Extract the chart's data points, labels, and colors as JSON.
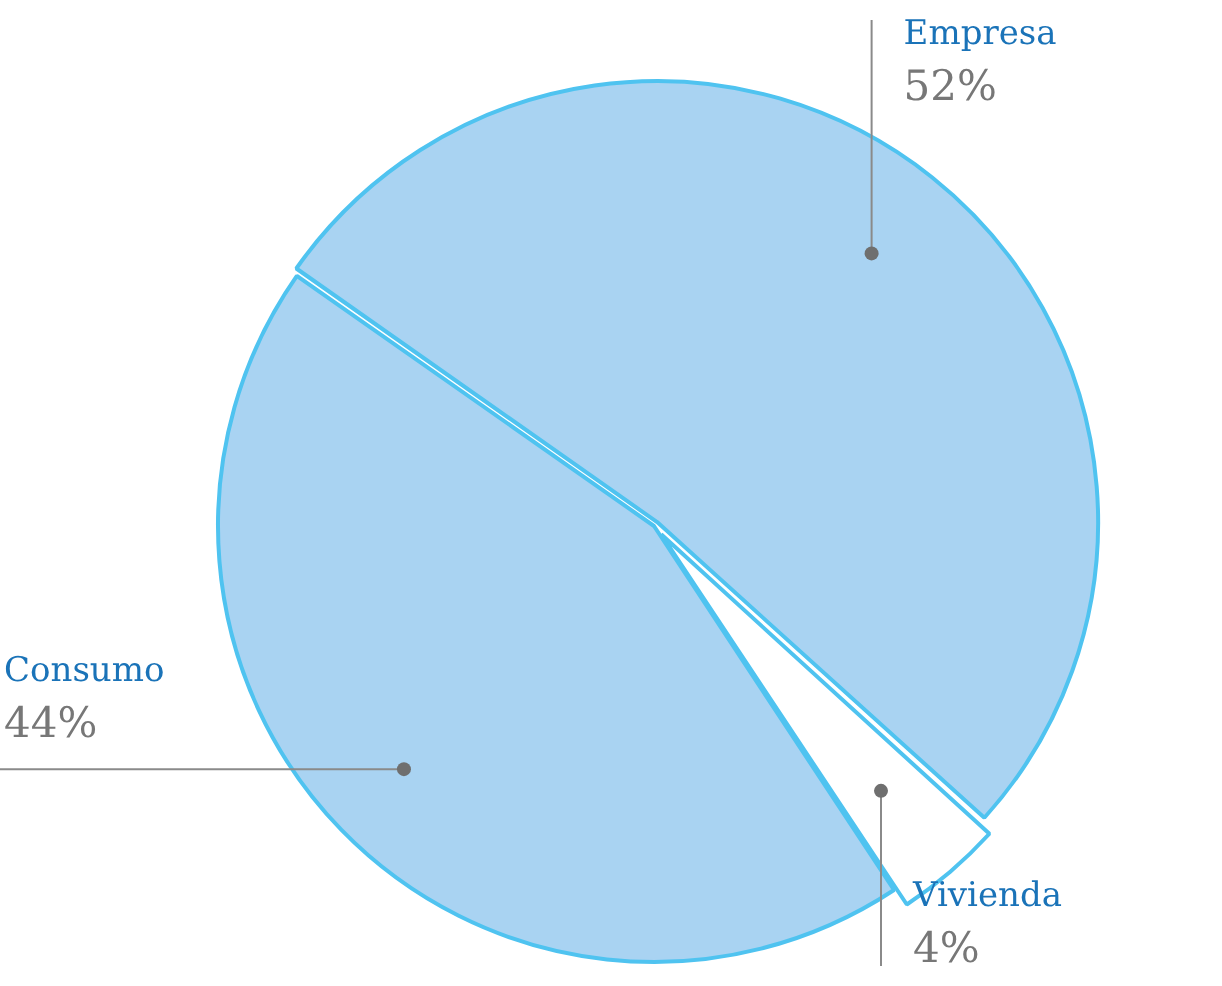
{
  "chart_data": {
    "type": "pie",
    "categories": [
      "Empresa",
      "Vivienda",
      "Consumo"
    ],
    "values": [
      52,
      4,
      44
    ],
    "colors": [
      "#a9d3f2",
      "#ffffff",
      "#a9d3f2"
    ],
    "value_labels": [
      "52%",
      "4%",
      "44%"
    ],
    "legend": false
  }
}
